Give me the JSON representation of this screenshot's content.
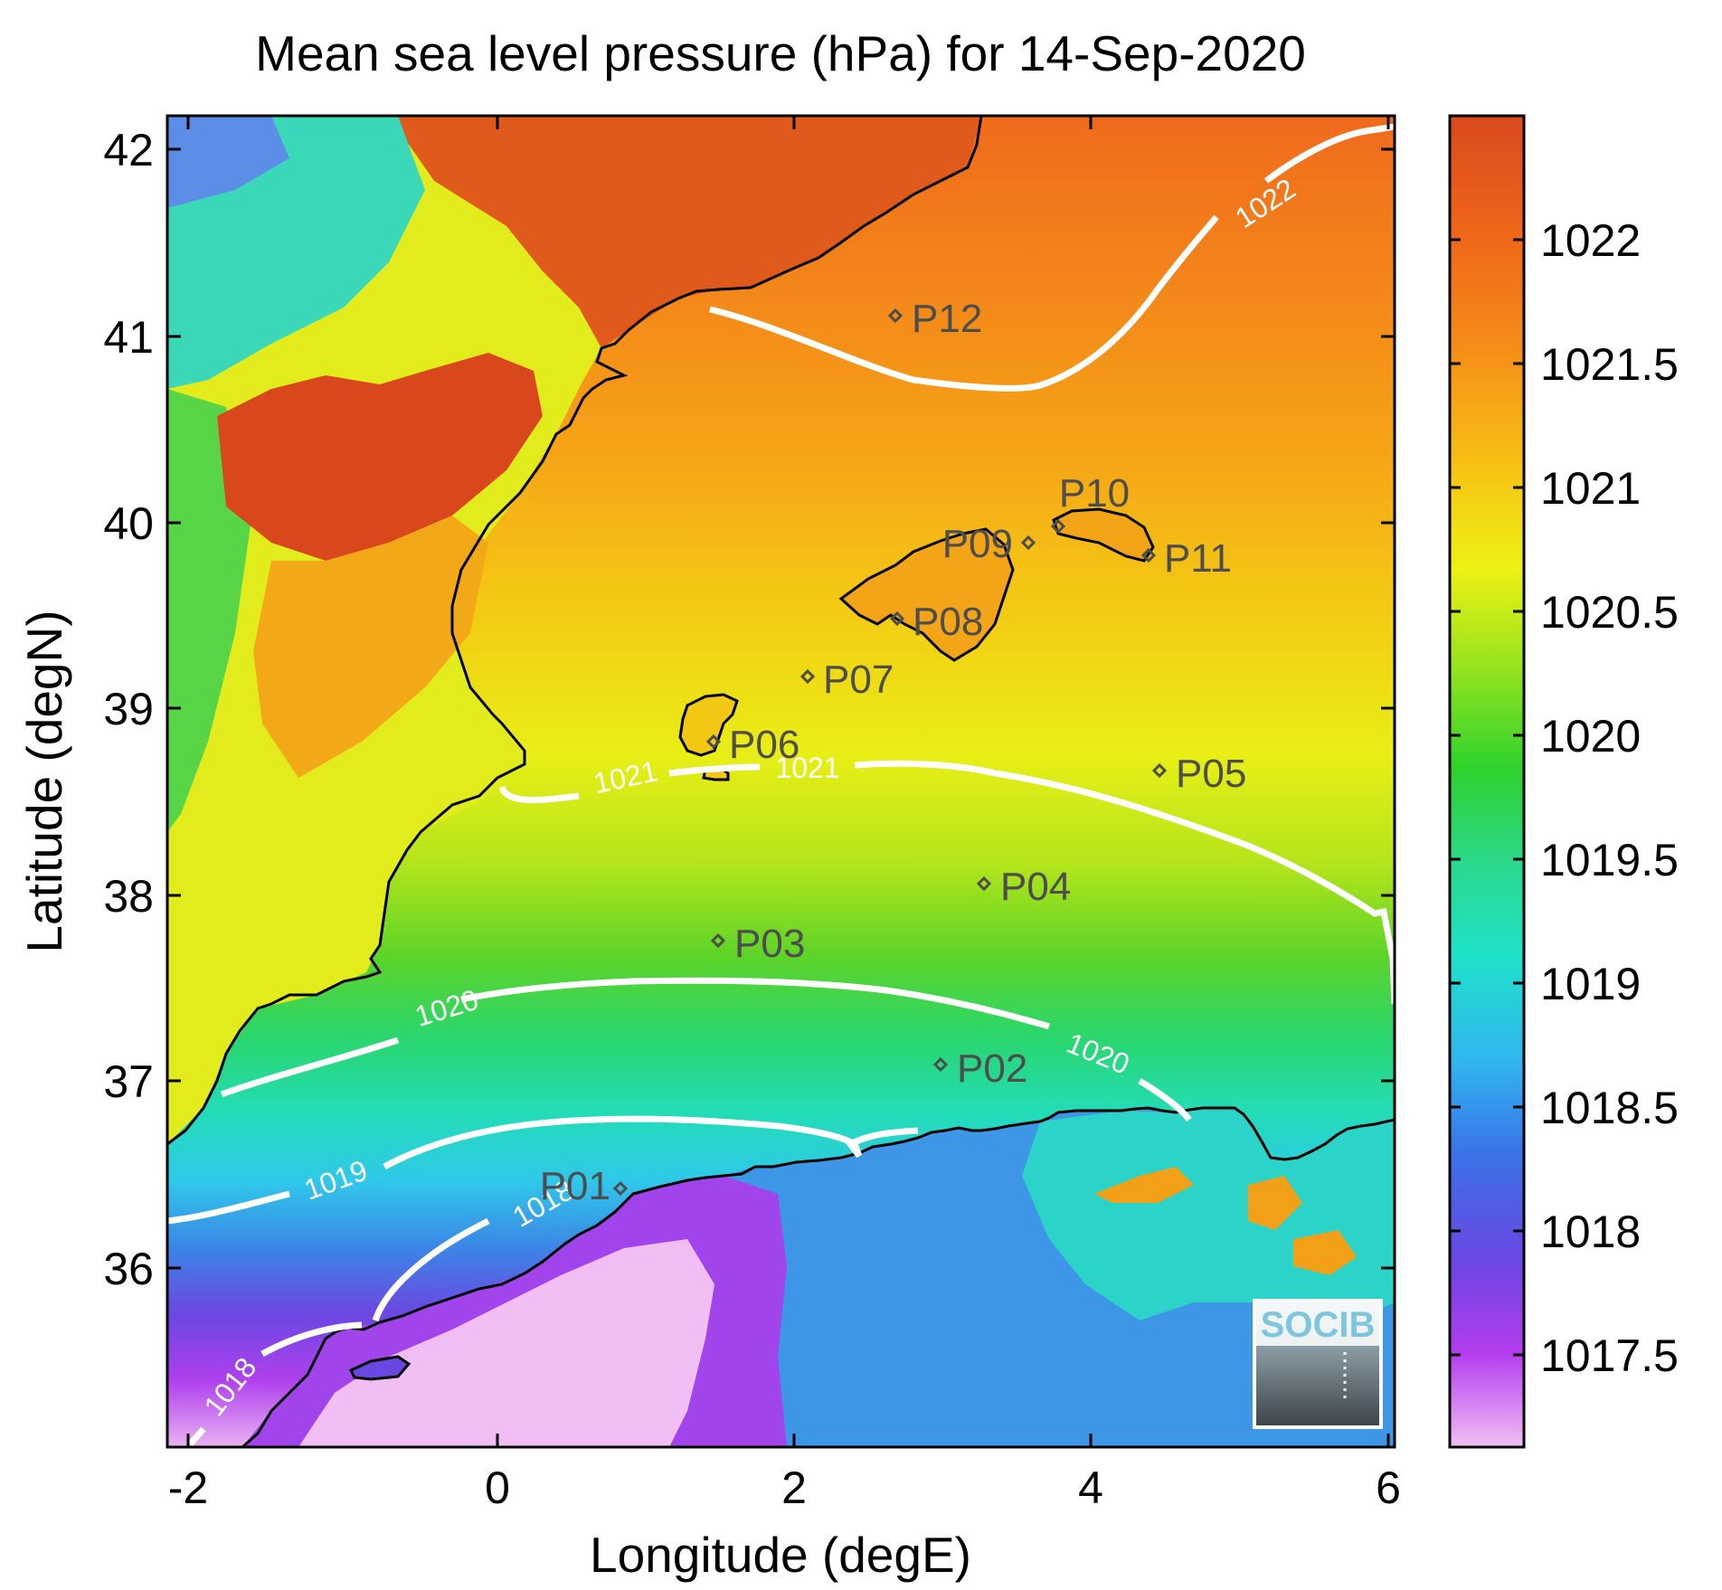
{
  "title": "Mean sea level pressure (hPa) for 14-Sep-2020",
  "map": {
    "xlabel": "Longitude (degE)",
    "ylabel": "Latitude (degN)",
    "x_ticks": [
      "-2",
      "0",
      "2",
      "4",
      "6"
    ],
    "y_ticks": [
      "42",
      "41",
      "40",
      "39",
      "38",
      "37",
      "36"
    ]
  },
  "colorbar": {
    "ticks": [
      "1022",
      "1021.5",
      "1021",
      "1020.5",
      "1020",
      "1019.5",
      "1019",
      "1018.5",
      "1018",
      "1017.5"
    ],
    "colors": [
      "#d94a1e",
      "#f1721a",
      "#f7b215",
      "#f2ee14",
      "#a8e31e",
      "#2dd22c",
      "#2bd98a",
      "#1fe2c8",
      "#2fb6f0",
      "#3a73e8",
      "#6b45e3",
      "#b33cef",
      "#e6a6f2"
    ]
  },
  "stations": [
    {
      "label": "P01"
    },
    {
      "label": "P02"
    },
    {
      "label": "P03"
    },
    {
      "label": "P04"
    },
    {
      "label": "P05"
    },
    {
      "label": "P06"
    },
    {
      "label": "P07"
    },
    {
      "label": "P08"
    },
    {
      "label": "P09"
    },
    {
      "label": "P10"
    },
    {
      "label": "P11"
    },
    {
      "label": "P12"
    }
  ],
  "contours": {
    "c1022": "1022",
    "c1021a": "1021",
    "c1021b": "1021",
    "c1020a": "1020",
    "c1020b": "1020",
    "c1019": "1019",
    "c1018a": "1018",
    "c1018b": "1018"
  },
  "logo": {
    "text": "SOCIB"
  }
}
